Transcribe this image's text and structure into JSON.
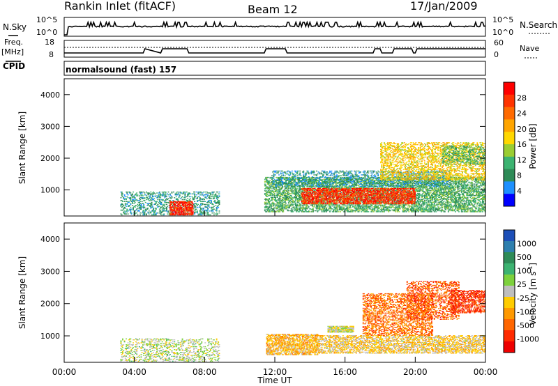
{
  "header": {
    "station": "Rankin Inlet (fitACF)",
    "beam": "Beam 12",
    "date": "17/Jan/2009"
  },
  "nsky_panel": {
    "label": "N.Sky",
    "left_ticks": [
      "10^5",
      "10^0"
    ],
    "right_ticks": [
      "10^5",
      "10^0"
    ],
    "right_label": "N.Search"
  },
  "freq_panel": {
    "label_line1": "Freq.",
    "label_line2": "[MHz]",
    "left_ticks": [
      "18",
      "8"
    ],
    "right_ticks": [
      "60",
      "0"
    ],
    "right_label": "Nave",
    "cpid_label": "CPID",
    "cpid_text": "normalsound (fast) 157"
  },
  "power_colorbar": {
    "label": "Power [dB]",
    "ticks": [
      "28",
      "24",
      "20",
      "16",
      "12",
      "8",
      "4"
    ],
    "colors": [
      "#ff0000",
      "#ff3300",
      "#ff6a00",
      "#ffa500",
      "#ffd700",
      "#9acd32",
      "#3cb371",
      "#2e8b57",
      "#1e90ff",
      "#0000ff"
    ]
  },
  "velocity_colorbar": {
    "label_main": "Velocity [m s",
    "label_sup": "-1",
    "label_end": "]",
    "ticks": [
      "1000",
      "500",
      "100",
      "25",
      "-25",
      "-100",
      "-500",
      "-1000"
    ],
    "colors": [
      "#1d4fb8",
      "#2e7fae",
      "#2e8b57",
      "#3cb371",
      "#7dd13c",
      "#bebebe",
      "#ffcc00",
      "#ff9900",
      "#ff6600",
      "#ff2a00",
      "#ee0000"
    ]
  },
  "axes": {
    "ylabel": "Slant Range [km]",
    "xlabel": "Time UT",
    "xticks": [
      "00:00",
      "04:00",
      "08:00",
      "12:00",
      "16:00",
      "20:00",
      "00:00"
    ],
    "yticks": [
      "1000",
      "2000",
      "3000",
      "4000"
    ]
  },
  "chart_data": [
    {
      "type": "heatmap",
      "title": "",
      "quantity": "Power [dB]",
      "xlabel": "",
      "ylabel": "Slant Range [km]",
      "xlim_hours": [
        0,
        24
      ],
      "ylim_km": [
        180,
        4500
      ],
      "clim": [
        0,
        30
      ],
      "regions": [
        {
          "t0": 3.2,
          "t1": 8.8,
          "r0": 200,
          "r1": 950,
          "value": 8,
          "density": 0.35
        },
        {
          "t0": 6.0,
          "t1": 7.3,
          "r0": 200,
          "r1": 650,
          "value": 27,
          "density": 0.7
        },
        {
          "t0": 11.4,
          "t1": 24.0,
          "r0": 300,
          "r1": 1400,
          "value": 10,
          "density": 0.55
        },
        {
          "t0": 13.5,
          "t1": 20.0,
          "r0": 550,
          "r1": 1050,
          "value": 26,
          "density": 0.65
        },
        {
          "t0": 11.8,
          "t1": 22.0,
          "r0": 1100,
          "r1": 1600,
          "value": 7,
          "density": 0.35
        },
        {
          "t0": 18.0,
          "t1": 24.0,
          "r0": 1300,
          "r1": 2500,
          "value": 17,
          "density": 0.45
        },
        {
          "t0": 21.5,
          "t1": 24.0,
          "r0": 1800,
          "r1": 2400,
          "value": 11,
          "density": 0.4
        }
      ]
    },
    {
      "type": "heatmap",
      "title": "",
      "quantity": "Velocity [m s-1]",
      "xlabel": "Time UT",
      "ylabel": "Slant Range [km]",
      "xlim_hours": [
        0,
        24
      ],
      "ylim_km": [
        180,
        4500
      ],
      "clim": [
        -1000,
        1000
      ],
      "regions": [
        {
          "t0": 3.2,
          "t1": 8.8,
          "r0": 200,
          "r1": 900,
          "value": 60,
          "density": 0.3
        },
        {
          "t0": 11.5,
          "t1": 14.5,
          "r0": 400,
          "r1": 1050,
          "value": -250,
          "density": 0.65
        },
        {
          "t0": 14.5,
          "t1": 24.0,
          "r0": 450,
          "r1": 1000,
          "value": -150,
          "density": 0.55
        },
        {
          "t0": 15.0,
          "t1": 16.5,
          "r0": 1100,
          "r1": 1300,
          "value": 0,
          "density": 0.8
        },
        {
          "t0": 17.0,
          "t1": 21.0,
          "r0": 1000,
          "r1": 2300,
          "value": -500,
          "density": 0.45
        },
        {
          "t0": 19.5,
          "t1": 22.5,
          "r0": 1500,
          "r1": 2700,
          "value": -600,
          "density": 0.4
        },
        {
          "t0": 22.0,
          "t1": 24.0,
          "r0": 1700,
          "r1": 2400,
          "value": -700,
          "density": 0.55
        }
      ]
    }
  ]
}
